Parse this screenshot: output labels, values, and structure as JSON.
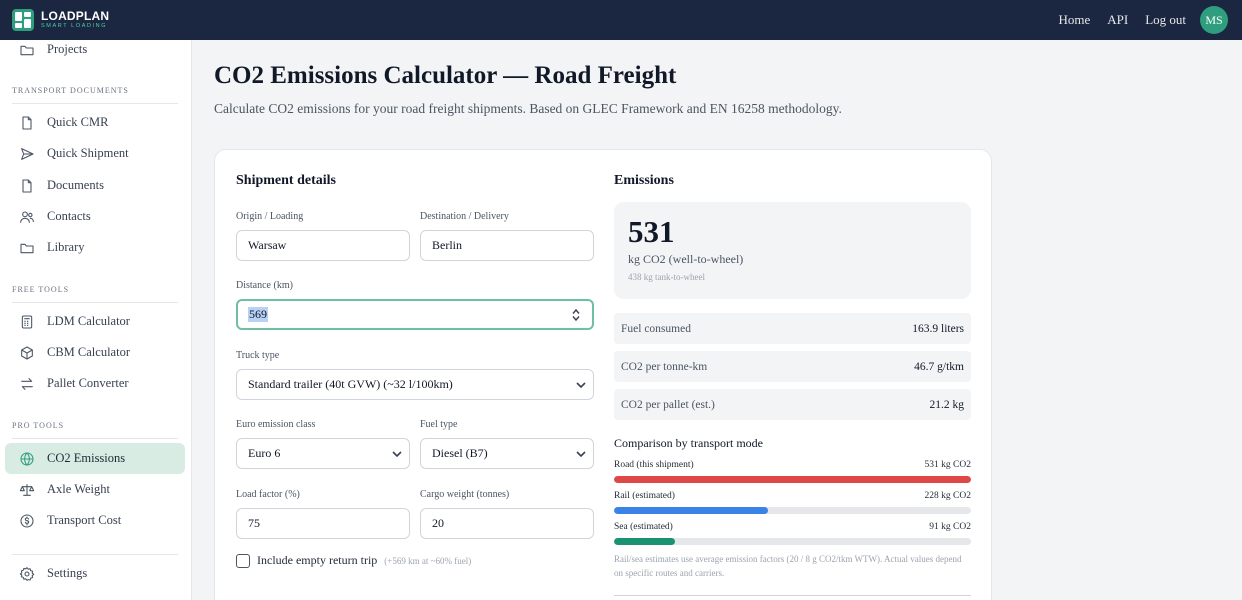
{
  "app": {
    "name": "LOADPLAN",
    "tagline": "SMART LOADING"
  },
  "topnav": {
    "home": "Home",
    "api": "API",
    "logout": "Log out",
    "avatar": "MS"
  },
  "sidebar": {
    "projects": "Projects",
    "transport_documents": {
      "title": "TRANSPORT DOCUMENTS",
      "items": [
        "Quick CMR",
        "Quick Shipment",
        "Documents",
        "Contacts",
        "Library"
      ]
    },
    "free_tools": {
      "title": "FREE TOOLS",
      "items": [
        "LDM Calculator",
        "CBM Calculator",
        "Pallet Converter"
      ]
    },
    "pro_tools": {
      "title": "PRO TOOLS",
      "items": [
        "CO2 Emissions",
        "Axle Weight",
        "Transport Cost"
      ]
    },
    "settings": "Settings"
  },
  "page": {
    "title": "CO2 Emissions Calculator — Road Freight",
    "subtitle": "Calculate CO2 emissions for your road freight shipments. Based on GLEC Framework and EN 16258 methodology."
  },
  "form": {
    "title": "Shipment details",
    "origin": {
      "label": "Origin / Loading",
      "value": "Warsaw"
    },
    "destination": {
      "label": "Destination / Delivery",
      "value": "Berlin"
    },
    "distance": {
      "label": "Distance (km)",
      "value": "569"
    },
    "truck_type": {
      "label": "Truck type",
      "value": "Standard trailer (40t GVW) (~32 l/100km)"
    },
    "euro_class": {
      "label": "Euro emission class",
      "value": "Euro 6"
    },
    "fuel_type": {
      "label": "Fuel type",
      "value": "Diesel (B7)"
    },
    "load_factor": {
      "label": "Load factor (%)",
      "value": "75"
    },
    "cargo_weight": {
      "label": "Cargo weight (tonnes)",
      "value": "20"
    },
    "empty_return": {
      "label": "Include empty return trip",
      "hint": "(+569 km at ~60% fuel)",
      "checked": false
    }
  },
  "results": {
    "title": "Emissions",
    "total": "531",
    "total_unit": "kg CO2 (well-to-wheel)",
    "tank_to_wheel": "438 kg tank-to-wheel",
    "metrics": [
      {
        "label": "Fuel consumed",
        "value": "163.9 liters"
      },
      {
        "label": "CO2 per tonne-km",
        "value": "46.7 g/tkm"
      },
      {
        "label": "CO2 per pallet (est.)",
        "value": "21.2 kg"
      }
    ],
    "comparison": {
      "title": "Comparison by transport mode",
      "modes": [
        {
          "label": "Road (this shipment)",
          "value": "531 kg CO2",
          "fraction": 1.0,
          "color": "#e04848"
        },
        {
          "label": "Rail (estimated)",
          "value": "228 kg CO2",
          "fraction": 0.43,
          "color": "#3b82e6"
        },
        {
          "label": "Sea (estimated)",
          "value": "91 kg CO2",
          "fraction": 0.17,
          "color": "#1a9372"
        }
      ],
      "note": "Rail/sea estimates use average emission factors (20 / 8 g CO2/tkm WTW). Actual values depend on specific routes and carriers."
    }
  }
}
